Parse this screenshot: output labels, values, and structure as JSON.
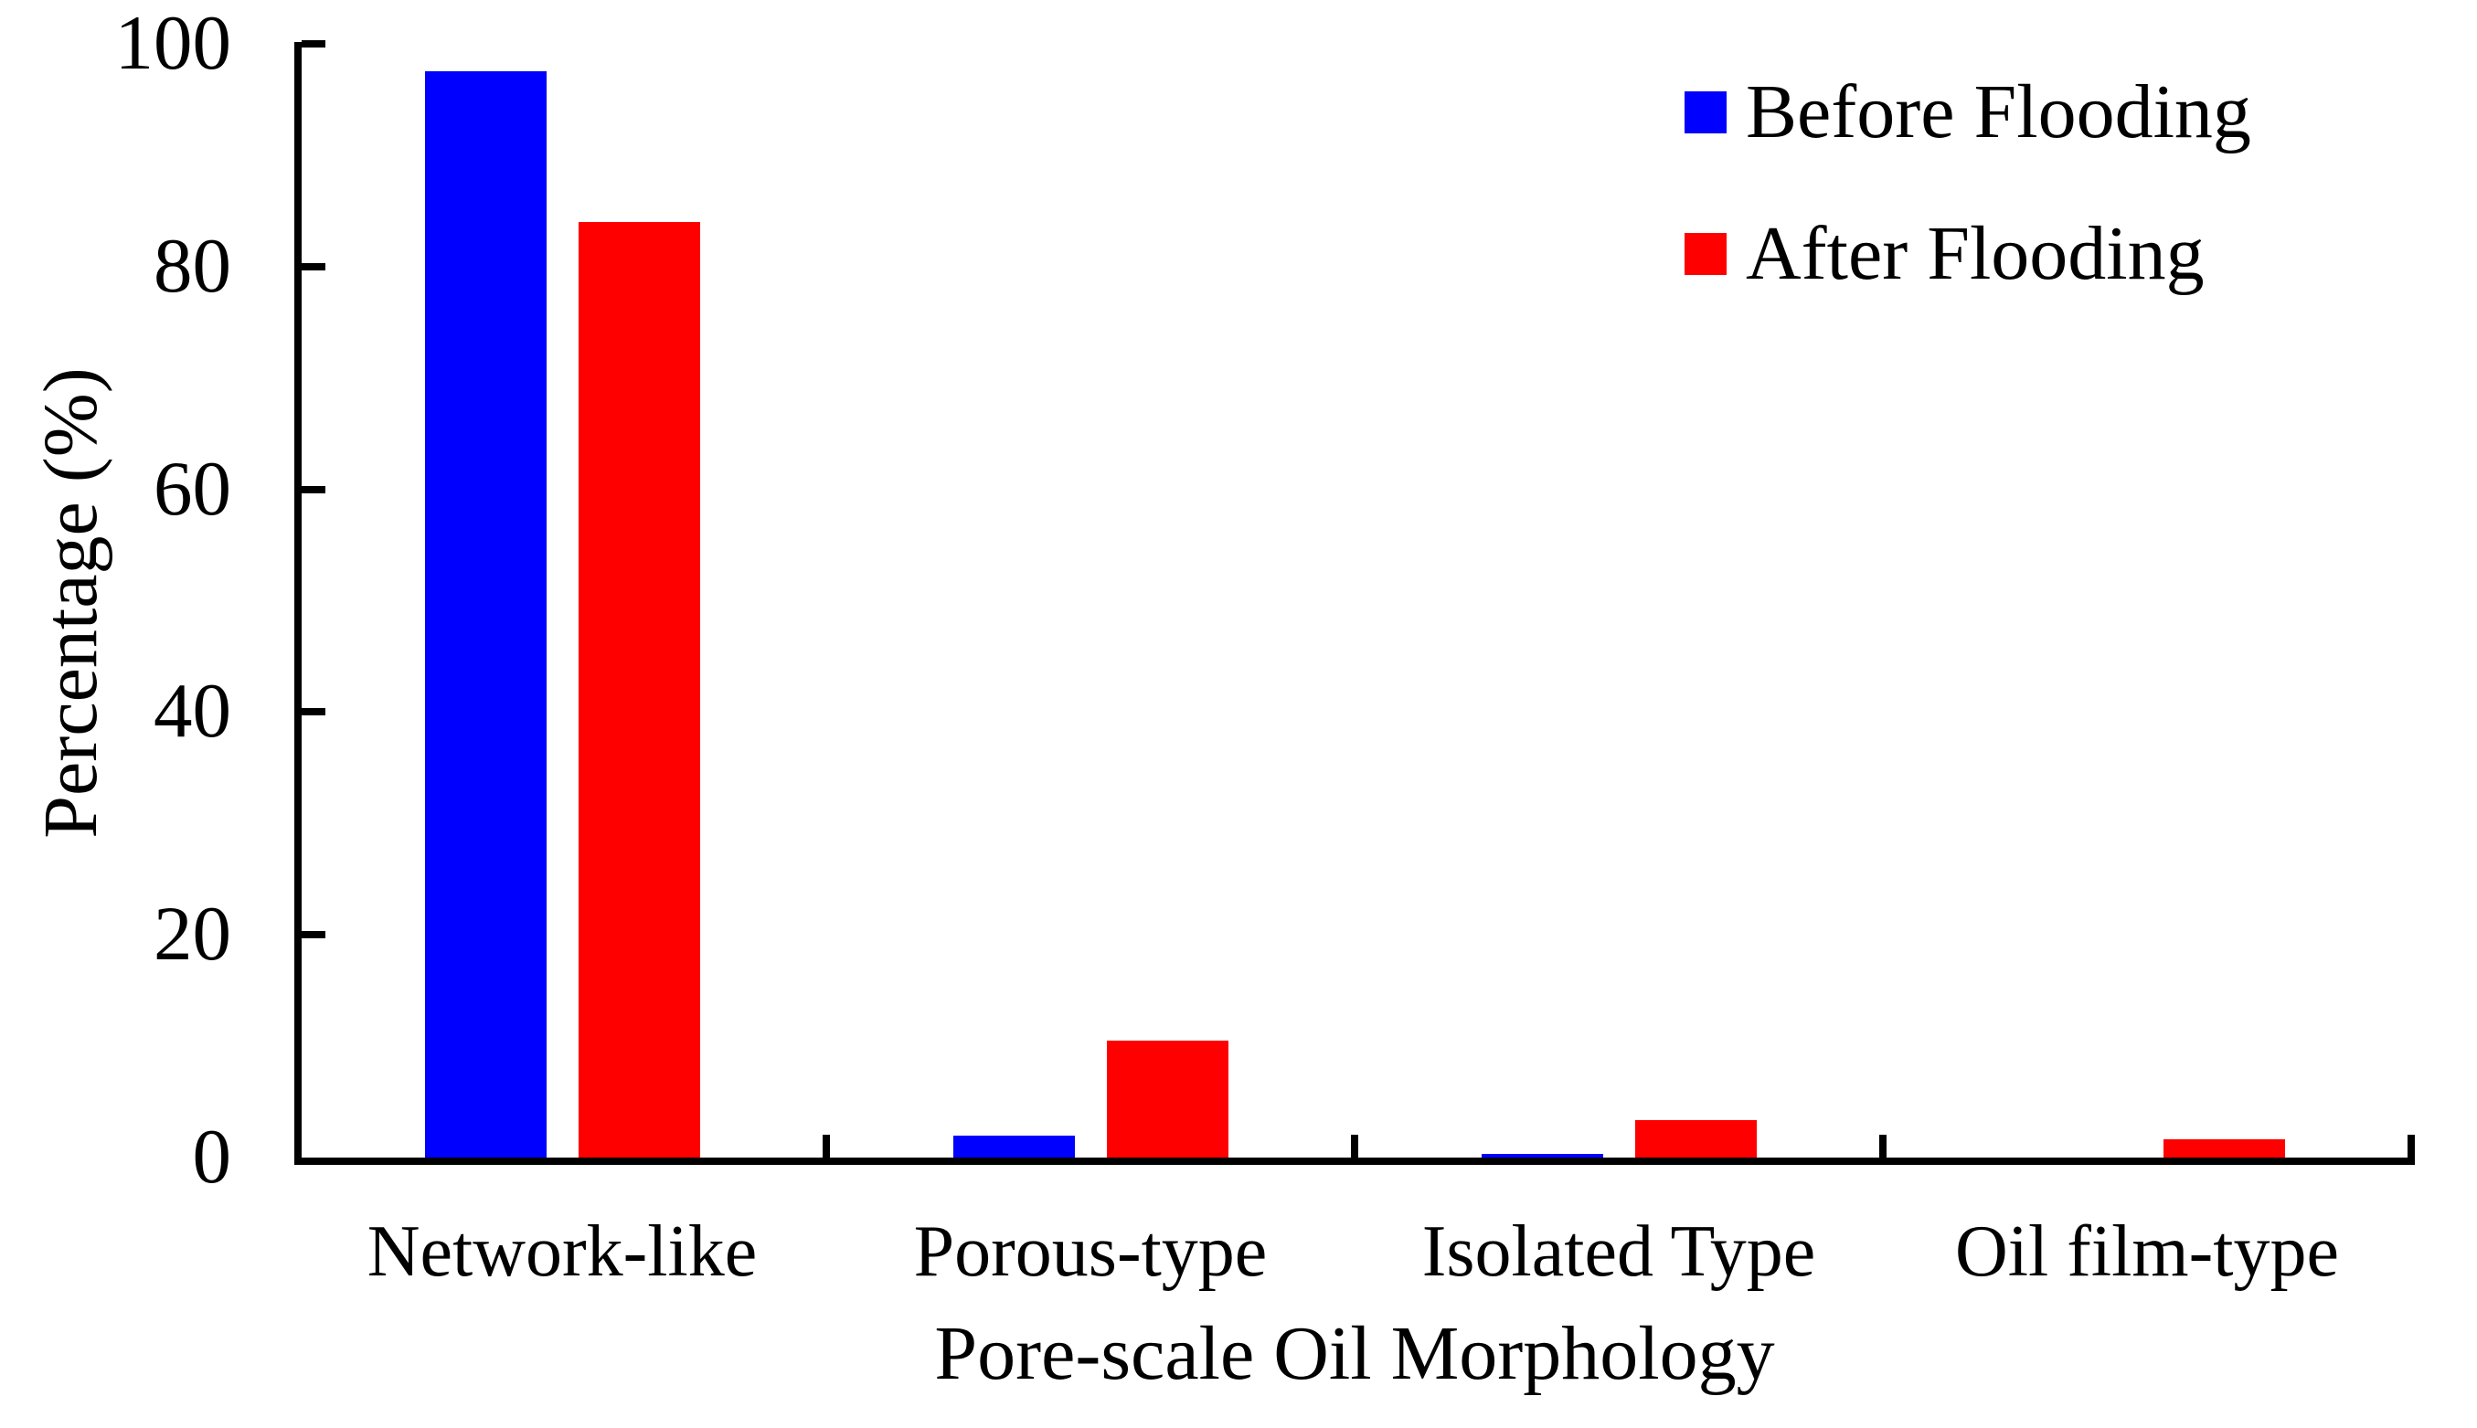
{
  "chart_data": {
    "type": "bar",
    "title": "",
    "xlabel": "Pore-scale Oil Morphology",
    "ylabel": "Percentage (%)",
    "categories": [
      "Network-like",
      "Porous-type",
      "Isolated Type",
      "Oil film-type"
    ],
    "series": [
      {
        "name": "Before Flooding",
        "color": "#0000FF",
        "values": [
          97.5,
          2.0,
          0.3,
          0
        ]
      },
      {
        "name": "After Flooding",
        "color": "#FF0000",
        "values": [
          84.0,
          10.5,
          3.4,
          1.6
        ]
      }
    ],
    "yticks": [
      0,
      20,
      40,
      60,
      80,
      100
    ],
    "ylim": [
      0,
      100
    ],
    "grid": false,
    "legend_position": "top-right",
    "axis_color": "#000000",
    "background_color": "#FFFFFF"
  }
}
